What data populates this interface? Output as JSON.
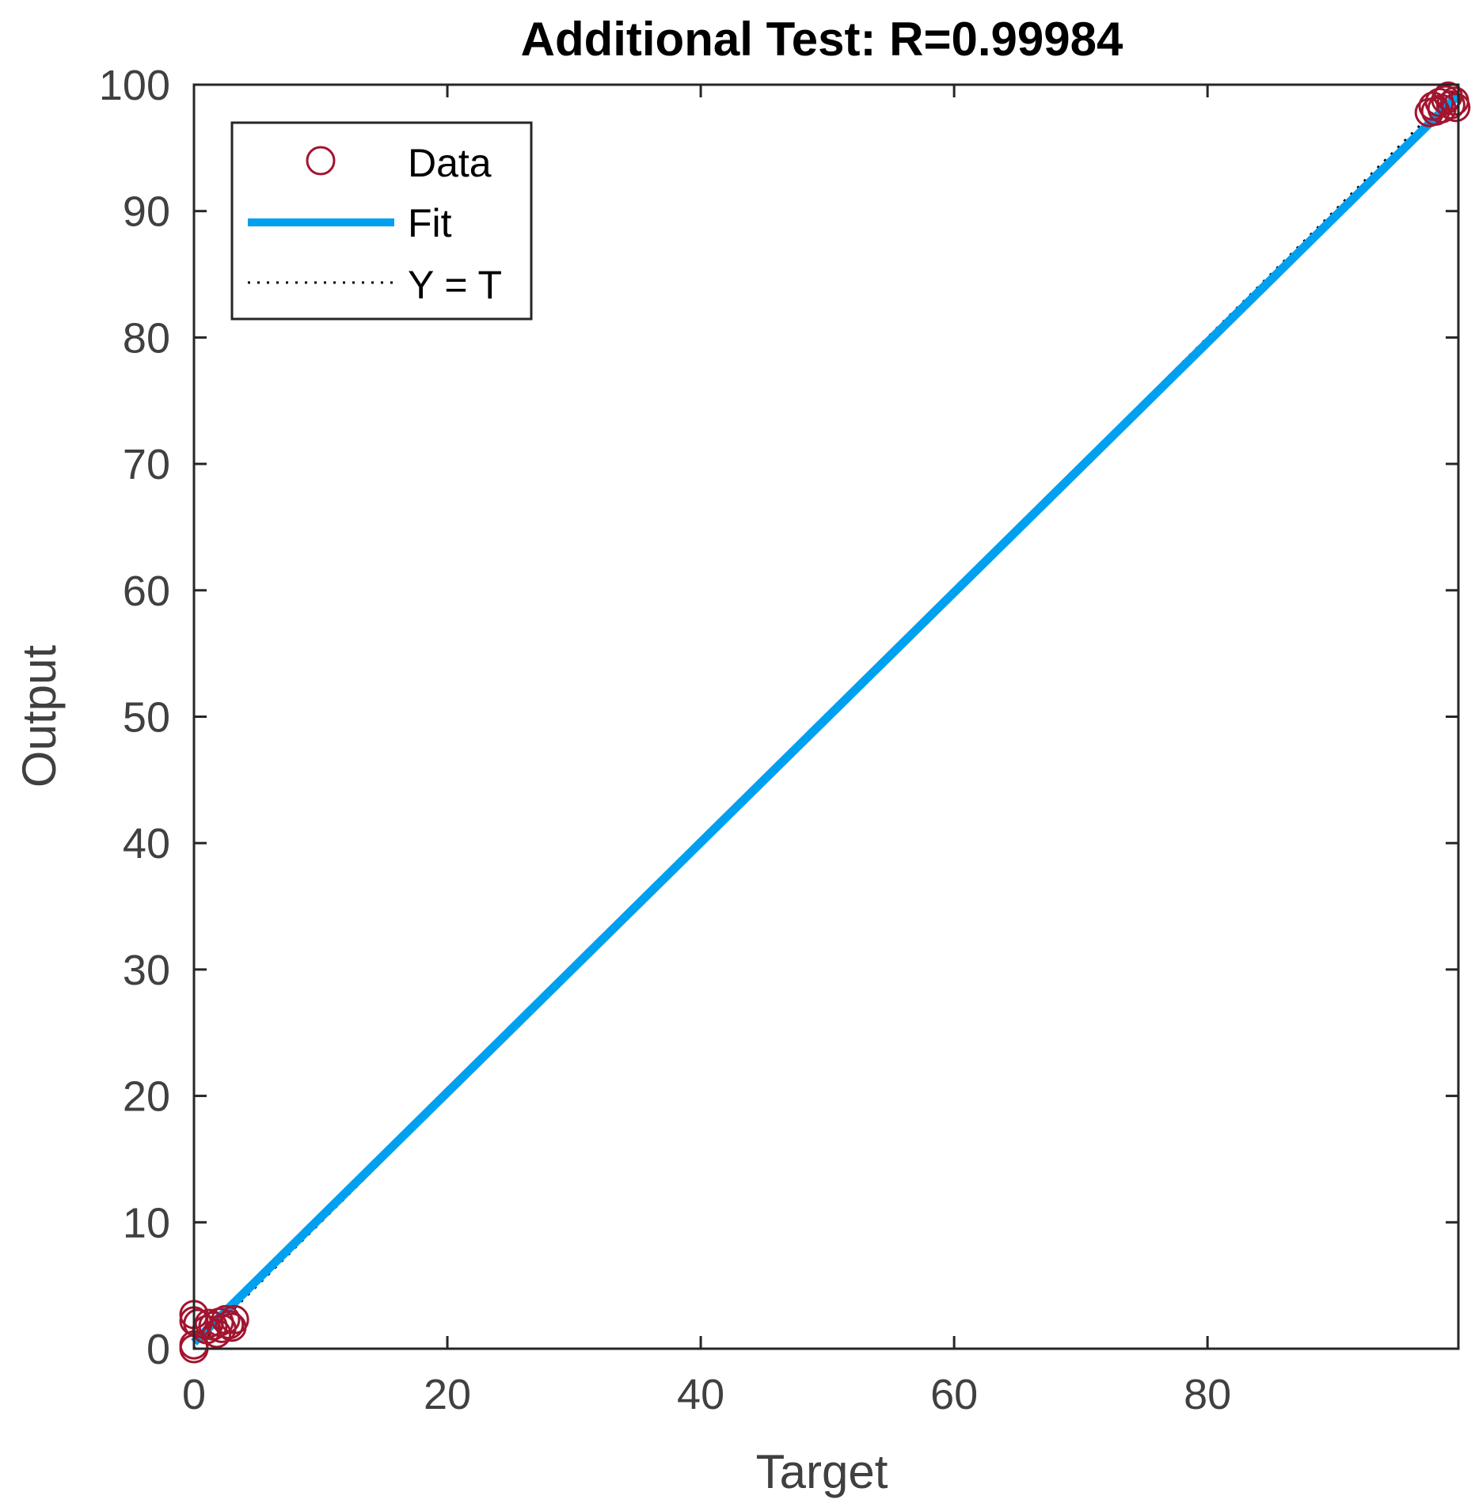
{
  "chart_data": {
    "type": "scatter",
    "title": "Additional Test: R=0.99984",
    "xlabel": "Target",
    "ylabel": "Output",
    "xlim": [
      0,
      99.8
    ],
    "ylim": [
      0,
      100
    ],
    "xticks": [
      0,
      20,
      40,
      60,
      80
    ],
    "yticks": [
      0,
      10,
      20,
      30,
      40,
      50,
      60,
      70,
      80,
      90,
      100
    ],
    "grid": false,
    "legend_position": "top-left",
    "colors": {
      "data": "#A2142F",
      "fit": "#00A0F0",
      "ref": "#000000",
      "axes": "#262626"
    },
    "series": [
      {
        "name": "Data",
        "marker": "circle",
        "points": [
          [
            0,
            0
          ],
          [
            0,
            0.3
          ],
          [
            0,
            2.2
          ],
          [
            0,
            2.7
          ],
          [
            0.3,
            2.0
          ],
          [
            1,
            1.5
          ],
          [
            1.2,
            2.0
          ],
          [
            1.5,
            1.8
          ],
          [
            1.8,
            1.2
          ],
          [
            2,
            2.1
          ],
          [
            2.2,
            1.6
          ],
          [
            2.5,
            2.3
          ],
          [
            2.8,
            1.9
          ],
          [
            3,
            1.7
          ],
          [
            3.2,
            2.3
          ],
          [
            97.5,
            97.8
          ],
          [
            97.8,
            98.3
          ],
          [
            98,
            97.9
          ],
          [
            98.3,
            98.6
          ],
          [
            98.5,
            98.1
          ],
          [
            98.8,
            98.8
          ],
          [
            99,
            99.1
          ],
          [
            99.2,
            98.4
          ],
          [
            99.5,
            98.7
          ],
          [
            99.6,
            98.2
          ]
        ]
      },
      {
        "name": "Fit",
        "line": [
          [
            0,
            0.5
          ],
          [
            99.8,
            99.2
          ]
        ]
      },
      {
        "name": "Y = T",
        "line": [
          [
            0,
            0
          ],
          [
            99.8,
            99.8
          ]
        ]
      }
    ]
  }
}
